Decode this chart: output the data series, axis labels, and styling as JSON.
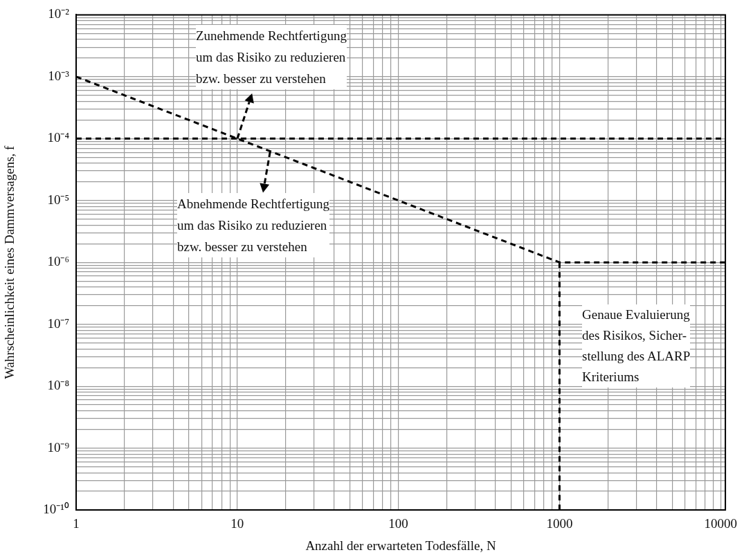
{
  "chart_data": {
    "type": "line",
    "xlabel": "Anzahl der erwarteten Todesfälle, N",
    "ylabel": "Wahrscheinlichkeit eines Dammversagens, f",
    "series": [
      {
        "color": "#000000",
        "x": [
          1,
          1000,
          10700
        ],
        "values": [
          0.001,
          1e-06,
          1e-06
        ]
      },
      {
        "color": "#000000",
        "x": [
          1,
          10700
        ],
        "values": [
          0.0001,
          0.0001
        ]
      },
      {
        "color": "#000000",
        "x": [
          1000,
          1000
        ],
        "values": [
          1e-06,
          1e-10
        ]
      }
    ],
    "log": "xy",
    "xlim": [
      1,
      10700
    ],
    "ylim": [
      1e-10,
      0.01
    ],
    "xticks": [
      1,
      10,
      100,
      1000,
      10000
    ],
    "yticks": [
      {
        "value": 1e-10,
        "label": "10⁻¹⁰"
      },
      {
        "value": 1e-09,
        "label": "10⁻⁹"
      },
      {
        "value": 1e-08,
        "label": "10⁻⁸"
      },
      {
        "value": 1e-07,
        "label": "10⁻⁷"
      },
      {
        "value": 1e-06,
        "label": "10⁻⁶"
      },
      {
        "value": 1e-05,
        "label": "10⁻⁵"
      },
      {
        "value": 0.0001,
        "label": "10⁻⁴"
      },
      {
        "value": 0.001,
        "label": "10⁻³"
      },
      {
        "value": 0.01,
        "label": "10⁻²"
      }
    ],
    "grid": true,
    "legend": false,
    "marker": "none",
    "line_style": "dashed",
    "annotations": [
      {
        "text": "Zunehmende Rechtfertigung\num das Risiko zu reduzieren\nbzw. besser zu verstehen",
        "x": 10,
        "y": 0.0001
      },
      {
        "text": "Abnehmende Rechtfertigung\num das Risiko zu reduzieren\nbzw. besser zu verstehen",
        "x": 16,
        "y": 6.25e-05
      },
      "Genaue Evaluierung\ndes Risikos, Sicher-\nstellung des ALARP\nKriteriums"
    ]
  }
}
